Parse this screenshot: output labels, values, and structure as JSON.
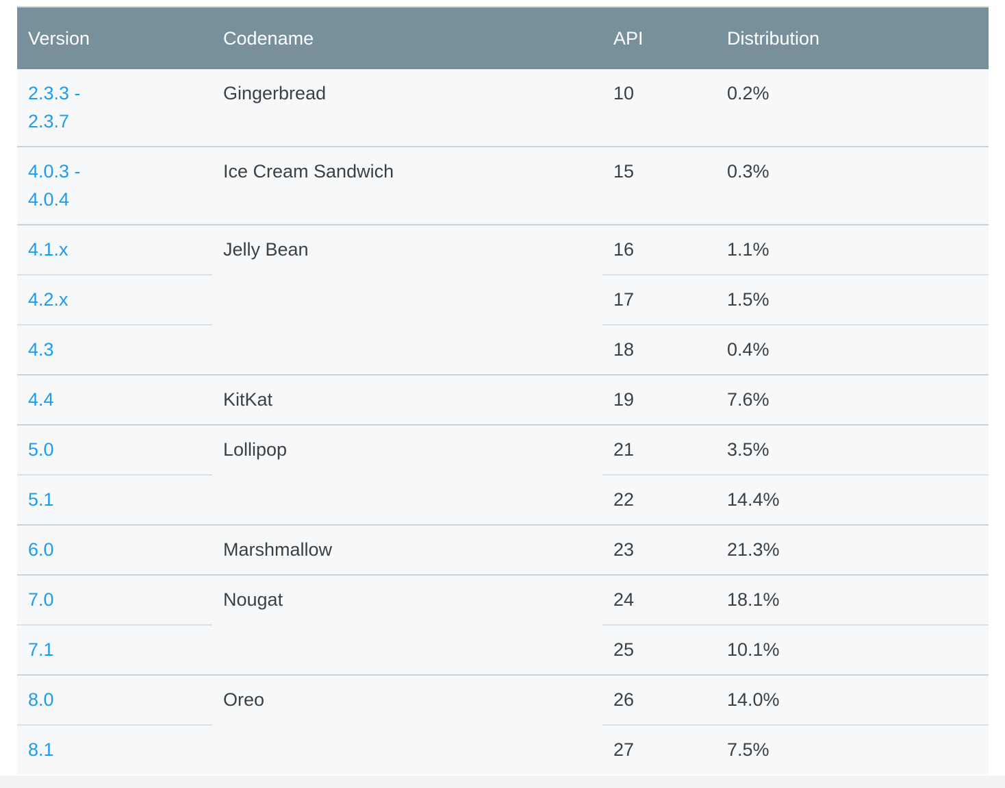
{
  "table": {
    "header": {
      "columns": [
        {
          "label": "Version"
        },
        {
          "label": "Codename"
        },
        {
          "label": "API"
        },
        {
          "label": "Distribution"
        }
      ],
      "background": "#78909c",
      "text_color": "#ffffff"
    },
    "colors": {
      "link_blue": "#1e9bf0",
      "body_text": "#3c4043",
      "row_background": "#f7f8f9",
      "group_divider": "#cbd3d9",
      "row_divider": "#dce1e4"
    },
    "groups": [
      {
        "codename": "Gingerbread",
        "rows": [
          {
            "version_lines": [
              "2.3.3 -",
              "2.3.7"
            ],
            "api": "10",
            "distribution": "0.2%"
          }
        ]
      },
      {
        "codename": "Ice Cream Sandwich",
        "rows": [
          {
            "version_lines": [
              "4.0.3 -",
              "4.0.4"
            ],
            "api": "15",
            "distribution": "0.3%"
          }
        ]
      },
      {
        "codename": "Jelly Bean",
        "rows": [
          {
            "version_lines": [
              "4.1.x"
            ],
            "api": "16",
            "distribution": "1.1%"
          },
          {
            "version_lines": [
              "4.2.x"
            ],
            "api": "17",
            "distribution": "1.5%"
          },
          {
            "version_lines": [
              "4.3"
            ],
            "api": "18",
            "distribution": "0.4%"
          }
        ]
      },
      {
        "codename": "KitKat",
        "rows": [
          {
            "version_lines": [
              "4.4"
            ],
            "api": "19",
            "distribution": "7.6%"
          }
        ]
      },
      {
        "codename": "Lollipop",
        "rows": [
          {
            "version_lines": [
              "5.0"
            ],
            "api": "21",
            "distribution": "3.5%"
          },
          {
            "version_lines": [
              "5.1"
            ],
            "api": "22",
            "distribution": "14.4%"
          }
        ]
      },
      {
        "codename": "Marshmallow",
        "rows": [
          {
            "version_lines": [
              "6.0"
            ],
            "api": "23",
            "distribution": "21.3%"
          }
        ]
      },
      {
        "codename": "Nougat",
        "rows": [
          {
            "version_lines": [
              "7.0"
            ],
            "api": "24",
            "distribution": "18.1%"
          },
          {
            "version_lines": [
              "7.1"
            ],
            "api": "25",
            "distribution": "10.1%"
          }
        ]
      },
      {
        "codename": "Oreo",
        "rows": [
          {
            "version_lines": [
              "8.0"
            ],
            "api": "26",
            "distribution": "14.0%"
          },
          {
            "version_lines": [
              "8.1"
            ],
            "api": "27",
            "distribution": "7.5%"
          }
        ]
      }
    ]
  }
}
